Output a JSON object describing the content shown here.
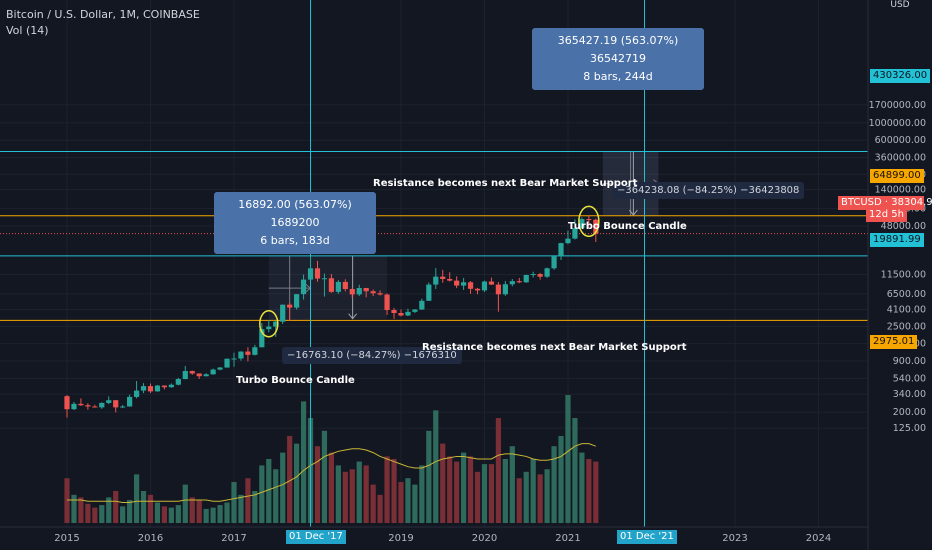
{
  "header": {
    "title": "Bitcoin / U.S. Dollar, 1M, COINBASE",
    "indicator": "Vol (14)"
  },
  "colors": {
    "bg": "#131722",
    "up": "#26a69a",
    "down": "#ef5350",
    "orange": "#f7a600",
    "cyan": "#22c1d6",
    "grid": "#1e222d",
    "volma": "#c8b634"
  },
  "chart_data": {
    "type": "candlestick",
    "title": "Bitcoin / U.S. Dollar, 1M, COINBASE",
    "y_scale": "log",
    "ylim": [
      100,
      1700000
    ],
    "y_ticks": [
      {
        "value": 1700000,
        "label": "1700000.00"
      },
      {
        "value": 1000000,
        "label": "1000000.00"
      },
      {
        "value": 600000,
        "label": "600000.00"
      },
      {
        "value": 360000,
        "label": "360000.00"
      },
      {
        "value": 220000,
        "label": "220000.00"
      },
      {
        "value": 140000,
        "label": "140000.00"
      },
      {
        "value": 80000,
        "label": "80000.00"
      },
      {
        "value": 48000,
        "label": "48000.00"
      },
      {
        "value": 11500,
        "label": "11500.00"
      },
      {
        "value": 6500,
        "label": "6500.00"
      },
      {
        "value": 4100,
        "label": "4100.00"
      },
      {
        "value": 2500,
        "label": "2500.00"
      },
      {
        "value": 1500,
        "label": "1500.00"
      },
      {
        "value": 900,
        "label": "900.00"
      },
      {
        "value": 540,
        "label": "540.00"
      },
      {
        "value": 340,
        "label": "340.00"
      },
      {
        "value": 200,
        "label": "200.00"
      },
      {
        "value": 125,
        "label": "125.00"
      }
    ],
    "y_unit": "USD",
    "x_labels": [
      "2015",
      "2016",
      "2017",
      "2019",
      "2020",
      "2021",
      "2023",
      "2024"
    ],
    "x_range": [
      "2014-12",
      "2024-09"
    ],
    "candles": [
      {
        "t": "2015-01",
        "o": 320,
        "h": 330,
        "l": 170,
        "c": 218
      },
      {
        "t": "2015-02",
        "o": 218,
        "h": 270,
        "l": 212,
        "c": 255
      },
      {
        "t": "2015-03",
        "o": 255,
        "h": 300,
        "l": 240,
        "c": 245
      },
      {
        "t": "2015-04",
        "o": 245,
        "h": 260,
        "l": 215,
        "c": 236
      },
      {
        "t": "2015-05",
        "o": 236,
        "h": 248,
        "l": 228,
        "c": 230
      },
      {
        "t": "2015-06",
        "o": 230,
        "h": 267,
        "l": 220,
        "c": 262
      },
      {
        "t": "2015-07",
        "o": 262,
        "h": 318,
        "l": 253,
        "c": 284
      },
      {
        "t": "2015-08",
        "o": 284,
        "h": 285,
        "l": 198,
        "c": 230
      },
      {
        "t": "2015-09",
        "o": 230,
        "h": 246,
        "l": 225,
        "c": 236
      },
      {
        "t": "2015-10",
        "o": 236,
        "h": 335,
        "l": 235,
        "c": 313
      },
      {
        "t": "2015-11",
        "o": 313,
        "h": 500,
        "l": 300,
        "c": 377
      },
      {
        "t": "2015-12",
        "o": 377,
        "h": 470,
        "l": 350,
        "c": 430
      },
      {
        "t": "2016-01",
        "o": 430,
        "h": 465,
        "l": 350,
        "c": 368
      },
      {
        "t": "2016-02",
        "o": 368,
        "h": 445,
        "l": 365,
        "c": 437
      },
      {
        "t": "2016-03",
        "o": 437,
        "h": 440,
        "l": 390,
        "c": 416
      },
      {
        "t": "2016-04",
        "o": 416,
        "h": 465,
        "l": 410,
        "c": 448
      },
      {
        "t": "2016-05",
        "o": 448,
        "h": 550,
        "l": 440,
        "c": 530
      },
      {
        "t": "2016-06",
        "o": 530,
        "h": 780,
        "l": 525,
        "c": 670
      },
      {
        "t": "2016-07",
        "o": 670,
        "h": 680,
        "l": 600,
        "c": 624
      },
      {
        "t": "2016-08",
        "o": 624,
        "h": 625,
        "l": 530,
        "c": 575
      },
      {
        "t": "2016-09",
        "o": 575,
        "h": 630,
        "l": 570,
        "c": 609
      },
      {
        "t": "2016-10",
        "o": 609,
        "h": 720,
        "l": 600,
        "c": 700
      },
      {
        "t": "2016-11",
        "o": 700,
        "h": 755,
        "l": 685,
        "c": 743
      },
      {
        "t": "2016-12",
        "o": 743,
        "h": 970,
        "l": 740,
        "c": 963
      },
      {
        "t": "2017-01",
        "o": 963,
        "h": 1150,
        "l": 760,
        "c": 970
      },
      {
        "t": "2017-02",
        "o": 970,
        "h": 1200,
        "l": 910,
        "c": 1190
      },
      {
        "t": "2017-03",
        "o": 1190,
        "h": 1350,
        "l": 890,
        "c": 1080
      },
      {
        "t": "2017-04",
        "o": 1080,
        "h": 1450,
        "l": 1060,
        "c": 1350
      },
      {
        "t": "2017-05",
        "o": 1350,
        "h": 2760,
        "l": 1340,
        "c": 2300
      },
      {
        "t": "2017-06",
        "o": 2300,
        "h": 3000,
        "l": 2100,
        "c": 2480
      },
      {
        "t": "2017-07",
        "o": 2480,
        "h": 2950,
        "l": 1830,
        "c": 2870
      },
      {
        "t": "2017-08",
        "o": 2870,
        "h": 4750,
        "l": 2680,
        "c": 4730
      },
      {
        "t": "2017-09",
        "o": 4730,
        "h": 5000,
        "l": 2950,
        "c": 4340
      },
      {
        "t": "2017-10",
        "o": 4340,
        "h": 6450,
        "l": 4100,
        "c": 6450
      },
      {
        "t": "2017-11",
        "o": 6450,
        "h": 11500,
        "l": 5500,
        "c": 9900
      },
      {
        "t": "2017-12",
        "o": 9900,
        "h": 19891,
        "l": 9900,
        "c": 13800
      },
      {
        "t": "2018-01",
        "o": 13800,
        "h": 17200,
        "l": 9300,
        "c": 10200
      },
      {
        "t": "2018-02",
        "o": 10200,
        "h": 11800,
        "l": 6000,
        "c": 10300
      },
      {
        "t": "2018-03",
        "o": 10300,
        "h": 11700,
        "l": 6700,
        "c": 6900
      },
      {
        "t": "2018-04",
        "o": 6900,
        "h": 9750,
        "l": 6500,
        "c": 9240
      },
      {
        "t": "2018-05",
        "o": 9240,
        "h": 10000,
        "l": 7000,
        "c": 7500
      },
      {
        "t": "2018-06",
        "o": 7500,
        "h": 7770,
        "l": 5750,
        "c": 6400
      },
      {
        "t": "2018-07",
        "o": 6400,
        "h": 8500,
        "l": 6100,
        "c": 7730
      },
      {
        "t": "2018-08",
        "o": 7730,
        "h": 7760,
        "l": 5880,
        "c": 7020
      },
      {
        "t": "2018-09",
        "o": 7020,
        "h": 7400,
        "l": 6100,
        "c": 6630
      },
      {
        "t": "2018-10",
        "o": 6630,
        "h": 7200,
        "l": 6200,
        "c": 6370
      },
      {
        "t": "2018-11",
        "o": 6370,
        "h": 6600,
        "l": 3500,
        "c": 4040
      },
      {
        "t": "2018-12",
        "o": 4040,
        "h": 4300,
        "l": 3120,
        "c": 3700
      },
      {
        "t": "2019-01",
        "o": 3700,
        "h": 4100,
        "l": 3350,
        "c": 3440
      },
      {
        "t": "2019-02",
        "o": 3440,
        "h": 4200,
        "l": 3380,
        "c": 3830
      },
      {
        "t": "2019-03",
        "o": 3830,
        "h": 4150,
        "l": 3700,
        "c": 4100
      },
      {
        "t": "2019-04",
        "o": 4100,
        "h": 5650,
        "l": 4060,
        "c": 5300
      },
      {
        "t": "2019-05",
        "o": 5300,
        "h": 9100,
        "l": 5300,
        "c": 8550
      },
      {
        "t": "2019-06",
        "o": 8550,
        "h": 13880,
        "l": 7500,
        "c": 10800
      },
      {
        "t": "2019-07",
        "o": 10800,
        "h": 13200,
        "l": 9000,
        "c": 10080
      },
      {
        "t": "2019-08",
        "o": 10080,
        "h": 12300,
        "l": 9350,
        "c": 9600
      },
      {
        "t": "2019-09",
        "o": 9600,
        "h": 10900,
        "l": 7700,
        "c": 8300
      },
      {
        "t": "2019-10",
        "o": 8300,
        "h": 10400,
        "l": 7300,
        "c": 9150
      },
      {
        "t": "2019-11",
        "o": 9150,
        "h": 9500,
        "l": 6500,
        "c": 7550
      },
      {
        "t": "2019-12",
        "o": 7550,
        "h": 7750,
        "l": 6430,
        "c": 7200
      },
      {
        "t": "2020-01",
        "o": 7200,
        "h": 9600,
        "l": 6860,
        "c": 9350
      },
      {
        "t": "2020-02",
        "o": 9350,
        "h": 10500,
        "l": 8450,
        "c": 8550
      },
      {
        "t": "2020-03",
        "o": 8550,
        "h": 9200,
        "l": 3850,
        "c": 6420
      },
      {
        "t": "2020-04",
        "o": 6420,
        "h": 9500,
        "l": 6150,
        "c": 8630
      },
      {
        "t": "2020-05",
        "o": 8630,
        "h": 10080,
        "l": 8120,
        "c": 9450
      },
      {
        "t": "2020-06",
        "o": 9450,
        "h": 10400,
        "l": 8900,
        "c": 9140
      },
      {
        "t": "2020-07",
        "o": 9140,
        "h": 11450,
        "l": 8980,
        "c": 11340
      },
      {
        "t": "2020-08",
        "o": 11340,
        "h": 12480,
        "l": 10520,
        "c": 11650
      },
      {
        "t": "2020-09",
        "o": 11650,
        "h": 12070,
        "l": 9880,
        "c": 10780
      },
      {
        "t": "2020-10",
        "o": 10780,
        "h": 14100,
        "l": 10380,
        "c": 13800
      },
      {
        "t": "2020-11",
        "o": 13800,
        "h": 19500,
        "l": 13200,
        "c": 19700
      },
      {
        "t": "2020-12",
        "o": 19700,
        "h": 29300,
        "l": 17600,
        "c": 28990
      },
      {
        "t": "2021-01",
        "o": 28990,
        "h": 41950,
        "l": 28130,
        "c": 33100
      },
      {
        "t": "2021-02",
        "o": 33100,
        "h": 58350,
        "l": 32300,
        "c": 45200
      },
      {
        "t": "2021-03",
        "o": 45200,
        "h": 61800,
        "l": 45000,
        "c": 58800
      },
      {
        "t": "2021-04",
        "o": 58800,
        "h": 64899,
        "l": 47000,
        "c": 57700
      },
      {
        "t": "2021-05",
        "o": 57700,
        "h": 59600,
        "l": 30000,
        "c": 38304.97
      }
    ],
    "volume": [
      {
        "t": "2015-01",
        "v": 0.35,
        "up": false
      },
      {
        "t": "2015-02",
        "v": 0.22,
        "up": true
      },
      {
        "t": "2015-03",
        "v": 0.2,
        "up": false
      },
      {
        "t": "2015-04",
        "v": 0.15,
        "up": false
      },
      {
        "t": "2015-05",
        "v": 0.12,
        "up": false
      },
      {
        "t": "2015-06",
        "v": 0.14,
        "up": true
      },
      {
        "t": "2015-07",
        "v": 0.2,
        "up": true
      },
      {
        "t": "2015-08",
        "v": 0.25,
        "up": false
      },
      {
        "t": "2015-09",
        "v": 0.13,
        "up": true
      },
      {
        "t": "2015-10",
        "v": 0.18,
        "up": true
      },
      {
        "t": "2015-11",
        "v": 0.38,
        "up": true
      },
      {
        "t": "2015-12",
        "v": 0.25,
        "up": true
      },
      {
        "t": "2016-01",
        "v": 0.22,
        "up": false
      },
      {
        "t": "2016-02",
        "v": 0.16,
        "up": true
      },
      {
        "t": "2016-03",
        "v": 0.13,
        "up": false
      },
      {
        "t": "2016-04",
        "v": 0.12,
        "up": true
      },
      {
        "t": "2016-05",
        "v": 0.14,
        "up": true
      },
      {
        "t": "2016-06",
        "v": 0.3,
        "up": true
      },
      {
        "t": "2016-07",
        "v": 0.2,
        "up": false
      },
      {
        "t": "2016-08",
        "v": 0.18,
        "up": false
      },
      {
        "t": "2016-09",
        "v": 0.11,
        "up": true
      },
      {
        "t": "2016-10",
        "v": 0.12,
        "up": true
      },
      {
        "t": "2016-11",
        "v": 0.14,
        "up": true
      },
      {
        "t": "2016-12",
        "v": 0.16,
        "up": true
      },
      {
        "t": "2017-01",
        "v": 0.32,
        "up": true
      },
      {
        "t": "2017-02",
        "v": 0.22,
        "up": true
      },
      {
        "t": "2017-03",
        "v": 0.35,
        "up": false
      },
      {
        "t": "2017-04",
        "v": 0.25,
        "up": true
      },
      {
        "t": "2017-05",
        "v": 0.45,
        "up": true
      },
      {
        "t": "2017-06",
        "v": 0.5,
        "up": true
      },
      {
        "t": "2017-07",
        "v": 0.42,
        "up": true
      },
      {
        "t": "2017-08",
        "v": 0.55,
        "up": true
      },
      {
        "t": "2017-09",
        "v": 0.68,
        "up": false
      },
      {
        "t": "2017-10",
        "v": 0.62,
        "up": true
      },
      {
        "t": "2017-11",
        "v": 0.95,
        "up": true
      },
      {
        "t": "2017-12",
        "v": 0.82,
        "up": true
      },
      {
        "t": "2018-01",
        "v": 0.6,
        "up": false
      },
      {
        "t": "2018-02",
        "v": 0.72,
        "up": true
      },
      {
        "t": "2018-03",
        "v": 0.55,
        "up": false
      },
      {
        "t": "2018-04",
        "v": 0.45,
        "up": true
      },
      {
        "t": "2018-05",
        "v": 0.4,
        "up": false
      },
      {
        "t": "2018-06",
        "v": 0.42,
        "up": false
      },
      {
        "t": "2018-07",
        "v": 0.48,
        "up": true
      },
      {
        "t": "2018-08",
        "v": 0.45,
        "up": false
      },
      {
        "t": "2018-09",
        "v": 0.3,
        "up": false
      },
      {
        "t": "2018-10",
        "v": 0.22,
        "up": false
      },
      {
        "t": "2018-11",
        "v": 0.52,
        "up": false
      },
      {
        "t": "2018-12",
        "v": 0.5,
        "up": false
      },
      {
        "t": "2019-01",
        "v": 0.32,
        "up": false
      },
      {
        "t": "2019-02",
        "v": 0.35,
        "up": true
      },
      {
        "t": "2019-03",
        "v": 0.3,
        "up": true
      },
      {
        "t": "2019-04",
        "v": 0.45,
        "up": true
      },
      {
        "t": "2019-05",
        "v": 0.72,
        "up": true
      },
      {
        "t": "2019-06",
        "v": 0.88,
        "up": true
      },
      {
        "t": "2019-07",
        "v": 0.62,
        "up": false
      },
      {
        "t": "2019-08",
        "v": 0.52,
        "up": false
      },
      {
        "t": "2019-09",
        "v": 0.48,
        "up": false
      },
      {
        "t": "2019-10",
        "v": 0.55,
        "up": true
      },
      {
        "t": "2019-11",
        "v": 0.52,
        "up": false
      },
      {
        "t": "2019-12",
        "v": 0.4,
        "up": false
      },
      {
        "t": "2020-01",
        "v": 0.46,
        "up": true
      },
      {
        "t": "2020-02",
        "v": 0.46,
        "up": false
      },
      {
        "t": "2020-03",
        "v": 0.82,
        "up": false
      },
      {
        "t": "2020-04",
        "v": 0.5,
        "up": true
      },
      {
        "t": "2020-05",
        "v": 0.6,
        "up": true
      },
      {
        "t": "2020-06",
        "v": 0.35,
        "up": false
      },
      {
        "t": "2020-07",
        "v": 0.4,
        "up": true
      },
      {
        "t": "2020-08",
        "v": 0.5,
        "up": true
      },
      {
        "t": "2020-09",
        "v": 0.38,
        "up": false
      },
      {
        "t": "2020-10",
        "v": 0.42,
        "up": true
      },
      {
        "t": "2020-11",
        "v": 0.6,
        "up": true
      },
      {
        "t": "2020-12",
        "v": 0.68,
        "up": true
      },
      {
        "t": "2021-01",
        "v": 1.0,
        "up": true
      },
      {
        "t": "2021-02",
        "v": 0.82,
        "up": true
      },
      {
        "t": "2021-03",
        "v": 0.55,
        "up": true
      },
      {
        "t": "2021-04",
        "v": 0.5,
        "up": false
      },
      {
        "t": "2021-05",
        "v": 0.48,
        "up": false
      }
    ],
    "volume_ma": [
      0.18,
      0.18,
      0.18,
      0.17,
      0.17,
      0.17,
      0.17,
      0.17,
      0.16,
      0.16,
      0.17,
      0.17,
      0.17,
      0.17,
      0.17,
      0.17,
      0.17,
      0.18,
      0.18,
      0.18,
      0.18,
      0.17,
      0.17,
      0.18,
      0.19,
      0.2,
      0.21,
      0.22,
      0.24,
      0.26,
      0.28,
      0.3,
      0.33,
      0.36,
      0.41,
      0.45,
      0.48,
      0.52,
      0.54,
      0.56,
      0.57,
      0.58,
      0.58,
      0.57,
      0.55,
      0.52,
      0.5,
      0.48,
      0.46,
      0.44,
      0.43,
      0.43,
      0.45,
      0.48,
      0.5,
      0.51,
      0.52,
      0.52,
      0.51,
      0.5,
      0.5,
      0.5,
      0.53,
      0.54,
      0.54,
      0.53,
      0.52,
      0.5,
      0.49,
      0.49,
      0.5,
      0.52,
      0.56,
      0.6,
      0.62,
      0.62,
      0.6
    ],
    "hlines": [
      {
        "value": 64899,
        "label": "64899.00",
        "color": "#f7a600"
      },
      {
        "value": 19891.99,
        "label": "19891.99",
        "color": "#22c1d6"
      },
      {
        "value": 2975.01,
        "label": "2975.01",
        "color": "#f7a600"
      },
      {
        "value": 430326,
        "label": "430326.00",
        "color": "#22c1d6"
      }
    ],
    "vlines": [
      {
        "t": "2017-12",
        "label": "01 Dec '17"
      },
      {
        "t": "2021-12",
        "label": "01 Dec '21"
      }
    ],
    "last_price": {
      "label": "BTCUSD",
      "value": "38304.97",
      "countdown": "12d 5h",
      "price": 38304.97
    },
    "measures": [
      {
        "id": "up1",
        "t0": "2017-06",
        "t1": "2017-12",
        "p0": 2975,
        "p1": 19891,
        "text1": "16892.00 (563.07%) 1689200",
        "text2": "6 bars, 183d"
      },
      {
        "id": "up2",
        "t0": "2021-06",
        "t1": "2022-02",
        "p0": 64899,
        "p1": 430326,
        "text1": "365427.19 (563.07%) 36542719",
        "text2": "8 bars, 244d"
      }
    ],
    "down_measures": [
      {
        "id": "dn1",
        "t0": "2017-12",
        "t1": "2018-11",
        "p0": 19891,
        "p1": 3128,
        "text": "−16763.10 (−84.27%) −1676310"
      },
      {
        "id": "dn2",
        "t0": "2021-06",
        "t1": "2022-02",
        "p0": 430326,
        "p1": 66088,
        "text": "−364238.08 (−84.25%) −36423808"
      },
      {
        "id": "dn_label_2",
        "text": "−364238.08 (−84.25%) −36423808"
      }
    ],
    "annotations": [
      {
        "text": "Resistance becomes next Bear Market Support",
        "near": "64899"
      },
      {
        "text": "Resistance becomes next Bear Market Support",
        "near": "2975.01"
      },
      {
        "text": "Turbo Bounce Candle",
        "near": "2017"
      },
      {
        "text": "Turbo Bounce Candle",
        "near": "2021"
      }
    ]
  }
}
